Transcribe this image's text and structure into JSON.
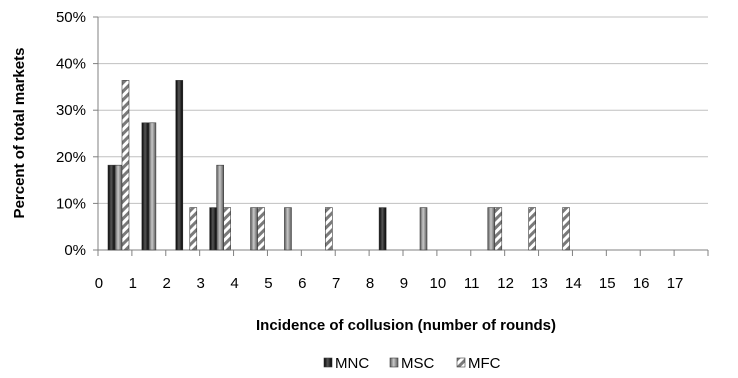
{
  "chart_data": {
    "type": "bar",
    "categories": [
      "0",
      "1",
      "2",
      "3",
      "4",
      "5",
      "6",
      "7",
      "8",
      "9",
      "10",
      "11",
      "12",
      "13",
      "14",
      "15",
      "16",
      "17"
    ],
    "series": [
      {
        "name": "MNC",
        "values": [
          18.2,
          27.3,
          36.4,
          9.1,
          0,
          0,
          0,
          0,
          9.1,
          0,
          0,
          0,
          0,
          0,
          0,
          0,
          0,
          0
        ]
      },
      {
        "name": "MSC",
        "values": [
          18.2,
          27.3,
          0,
          18.2,
          9.1,
          9.1,
          0,
          0,
          0,
          9.1,
          0,
          9.1,
          0,
          0,
          0,
          0,
          0,
          0
        ]
      },
      {
        "name": "MFC",
        "values": [
          36.4,
          0,
          9.1,
          9.1,
          9.1,
          0,
          9.1,
          0,
          0,
          0,
          0,
          9.1,
          9.1,
          9.1,
          0,
          0,
          0,
          0
        ]
      }
    ],
    "xlabel": "Incidence of collusion (number of rounds)",
    "ylabel": "Percent of total markets",
    "ylim": [
      0,
      50
    ],
    "yticks": [
      "0%",
      "10%",
      "20%",
      "30%",
      "40%",
      "50%"
    ],
    "grid": true,
    "legend_position": "bottom"
  }
}
